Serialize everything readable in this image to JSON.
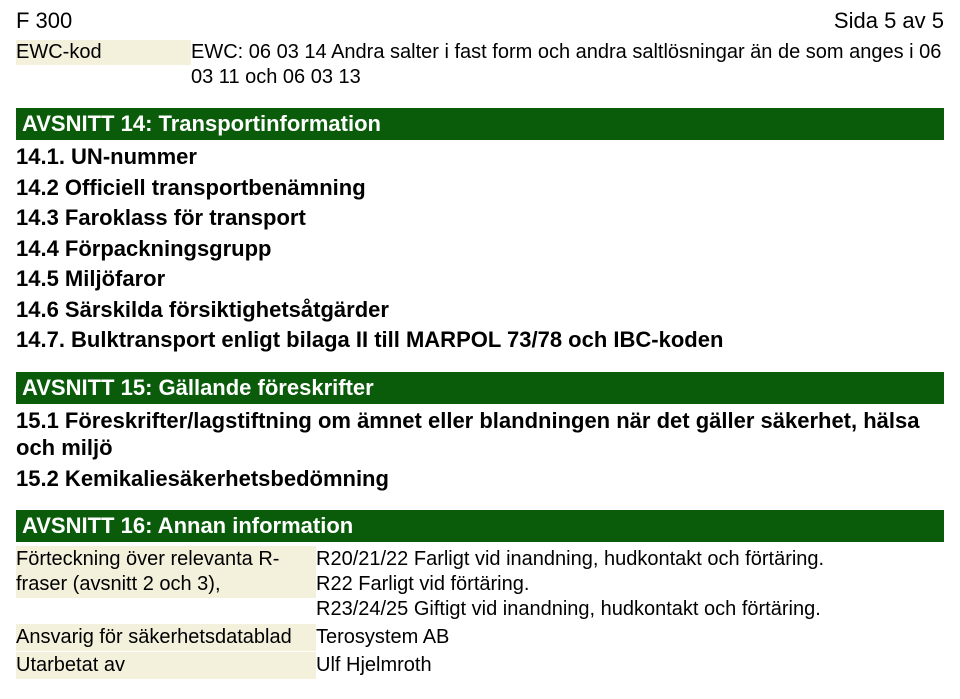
{
  "header": {
    "doc_id": "F 300",
    "page_label": "Sida 5 av 5"
  },
  "ewc": {
    "label": "EWC-kod",
    "desc": "EWC: 06 03 14 Andra salter i fast form och andra saltlösningar än de som anges i 06 03 11 och 06 03 13"
  },
  "section14": {
    "title": "AVSNITT 14: Transportinformation",
    "items": [
      "14.1. UN-nummer",
      "14.2 Officiell transportbenämning",
      "14.3 Faroklass för transport",
      "14.4 Förpackningsgrupp",
      "14.5 Miljöfaror",
      "14.6 Särskilda försiktighetsåtgärder",
      "14.7. Bulktransport enligt bilaga II till MARPOL 73/78 och IBC-koden"
    ]
  },
  "section15": {
    "title": "AVSNITT 15: Gällande föreskrifter",
    "items": [
      "15.1 Föreskrifter/lagstiftning om ämnet eller blandningen när det gäller säkerhet, hälsa och miljö",
      "15.2 Kemikaliesäkerhetsbedömning"
    ]
  },
  "section16": {
    "title": "AVSNITT 16: Annan information",
    "rows": [
      {
        "label": "Förteckning över relevanta R-fraser (avsnitt 2 och 3),",
        "value": "R20/21/22 Farligt vid inandning, hudkontakt och förtäring.\nR22 Farligt vid förtäring.\nR23/24/25 Giftigt vid inandning, hudkontakt och förtäring."
      },
      {
        "label": "Ansvarig för säkerhetsdatablad",
        "value": "Terosystem AB"
      },
      {
        "label": "Utarbetat av",
        "value": "Ulf Hjelmroth"
      }
    ]
  },
  "style": {
    "section_bar_bg": "#0a5c0a",
    "section_bar_fg": "#ffffff",
    "shade_bg": "#f3f0dc",
    "body_fontsize": 20,
    "heading_fontsize": 22
  }
}
